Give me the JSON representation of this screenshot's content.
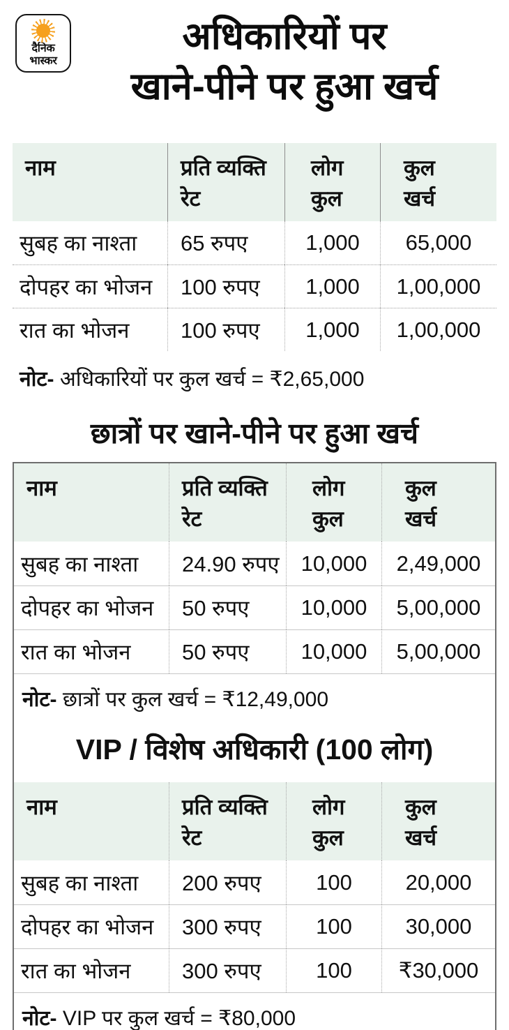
{
  "colors": {
    "header_row_bg": "#e9f2ec",
    "sun_orange": "#F6A01D",
    "text": "#101010",
    "box_border": "#6e6e6e",
    "box_bottom_border": "#000000"
  },
  "brand": {
    "logo_line1": "दैनिक",
    "logo_line2": "भास्कर"
  },
  "page": {
    "title_line1": "अधिकारियों पर",
    "title_line2": "खाने-पीने पर हुआ खर्च"
  },
  "chart_data": [
    {
      "type": "table",
      "title": "अधिकारियों पर खाने-पीने पर हुआ खर्च",
      "columns": [
        {
          "line1": "नाम",
          "line2": ""
        },
        {
          "line1": "प्रति व्यक्ति",
          "line2": "रेट"
        },
        {
          "line1": "लोग",
          "line2": "कुल"
        },
        {
          "line1": "कुल",
          "line2": "खर्च"
        }
      ],
      "rows": [
        [
          "सुबह का नाश्ता",
          "65 रुपए",
          "1,000",
          "65,000"
        ],
        [
          "दोपहर का भोजन",
          "100 रुपए",
          "1,000",
          "1,00,000"
        ],
        [
          "रात का भोजन",
          "100 रुपए",
          "1,000",
          "1,00,000"
        ]
      ],
      "note_label": "नोट-",
      "note": "अधिकारियों पर कुल खर्च = ₹2,65,000"
    },
    {
      "type": "table",
      "title": "छात्रों पर खाने-पीने पर हुआ खर्च",
      "columns": [
        {
          "line1": "नाम",
          "line2": ""
        },
        {
          "line1": "प्रति व्यक्ति",
          "line2": "रेट"
        },
        {
          "line1": "लोग",
          "line2": "कुल"
        },
        {
          "line1": "कुल",
          "line2": "खर्च"
        }
      ],
      "rows": [
        [
          "सुबह का नाश्ता",
          "24.90 रुपए",
          "10,000",
          "2,49,000"
        ],
        [
          "दोपहर का भोजन",
          "50 रुपए",
          "10,000",
          "5,00,000"
        ],
        [
          "रात का भोजन",
          "50 रुपए",
          "10,000",
          "5,00,000"
        ]
      ],
      "note_label": "नोट-",
      "note": "छात्रों पर कुल खर्च = ₹12,49,000"
    },
    {
      "type": "table",
      "title": "VIP / विशेष अधिकारी (100 लोग)",
      "columns": [
        {
          "line1": "नाम",
          "line2": ""
        },
        {
          "line1": "प्रति व्यक्ति",
          "line2": "रेट"
        },
        {
          "line1": "लोग",
          "line2": "कुल"
        },
        {
          "line1": "कुल",
          "line2": "खर्च"
        }
      ],
      "rows": [
        [
          "सुबह का नाश्ता",
          "200 रुपए",
          "100",
          "20,000"
        ],
        [
          "दोपहर का भोजन",
          "300 रुपए",
          "100",
          "30,000"
        ],
        [
          "रात का भोजन",
          "300 रुपए",
          "100",
          "₹30,000"
        ]
      ],
      "note_label": "नोट-",
      "note": "VIP पर कुल खर्च = ₹80,000"
    }
  ]
}
